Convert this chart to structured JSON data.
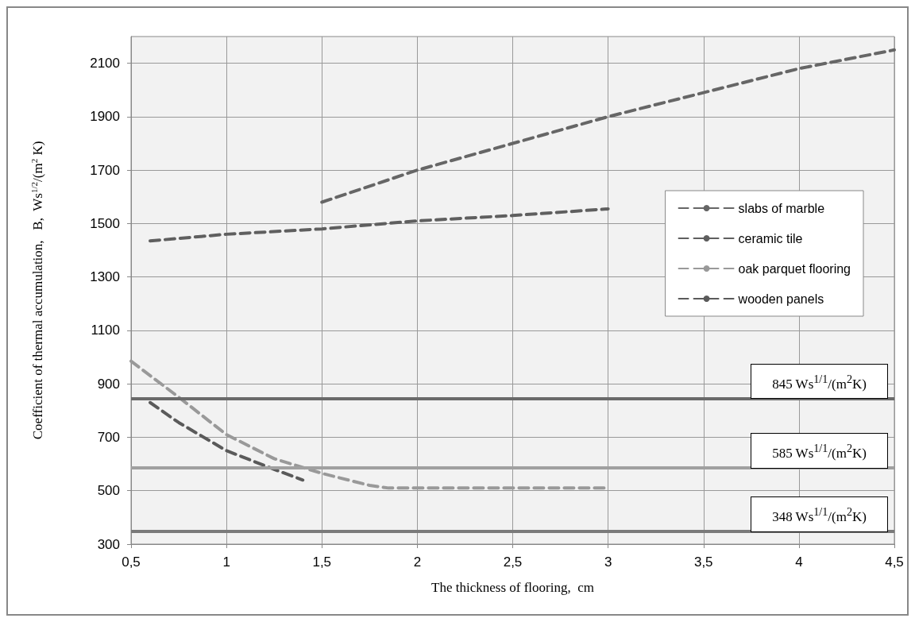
{
  "chart_data": {
    "type": "line",
    "xlabel": "The thickness of flooring,  cm",
    "ylabel": "Coefficient of thermal accumulation,   B,  Ws$^{1/2}$/(m$^{2}$ K)",
    "xlim": [
      0.5,
      4.5
    ],
    "xticks": [
      {
        "value": 0.5,
        "label": "0,5"
      },
      1,
      {
        "value": 1.5,
        "label": "1,5"
      },
      2,
      {
        "value": 2.5,
        "label": "2,5"
      },
      3,
      {
        "value": 3.5,
        "label": "3,5"
      },
      4,
      {
        "value": 4.5,
        "label": "4,5"
      }
    ],
    "ylim": [
      300,
      2200
    ],
    "yticks": [
      300,
      500,
      700,
      900,
      1100,
      1300,
      1500,
      1700,
      1900,
      2100
    ],
    "grid": true,
    "legend": "right",
    "marker": "none",
    "series": [
      {
        "name": "slabs of marble",
        "color": "#666666",
        "line_style": "dashed",
        "x": [
          1.5,
          2,
          2.5,
          3,
          3.5,
          4,
          4.5
        ],
        "values": [
          1580,
          1700,
          1800,
          1900,
          1990,
          2080,
          2150
        ]
      },
      {
        "name": "ceramic tile",
        "color": "#5f5f5f",
        "line_style": "dashed",
        "x": [
          0.6,
          1,
          1.5,
          2,
          2.5,
          3
        ],
        "values": [
          1435,
          1460,
          1480,
          1510,
          1530,
          1555
        ]
      },
      {
        "name": "oak parquet flooring",
        "color": "#999999",
        "line_style": "dashed",
        "x": [
          0.5,
          0.75,
          1,
          1.25,
          1.5,
          1.75,
          1.85,
          2,
          2.5,
          3
        ],
        "values": [
          985,
          850,
          710,
          620,
          565,
          520,
          510,
          510,
          510,
          510
        ]
      },
      {
        "name": "wooden panels",
        "color": "#5a5a5a",
        "line_style": "dashed",
        "x": [
          0.6,
          0.75,
          1,
          1.25,
          1.4
        ],
        "values": [
          830,
          755,
          650,
          580,
          540
        ]
      }
    ],
    "ref_lines": [
      {
        "axis": "y",
        "value": 845,
        "label": "845  Ws$^{1/1}$/(m$^{2}$K)",
        "color": "#6a6a6a"
      },
      {
        "axis": "y",
        "value": 585,
        "label": "585 Ws$^{1/1}$/(m$^{2}$K)",
        "color": "#a0a0a0"
      },
      {
        "axis": "y",
        "value": 348,
        "label": "348 Ws$^{1/1}$/(m$^{2}$K)",
        "color": "#7a7a7a"
      }
    ]
  }
}
